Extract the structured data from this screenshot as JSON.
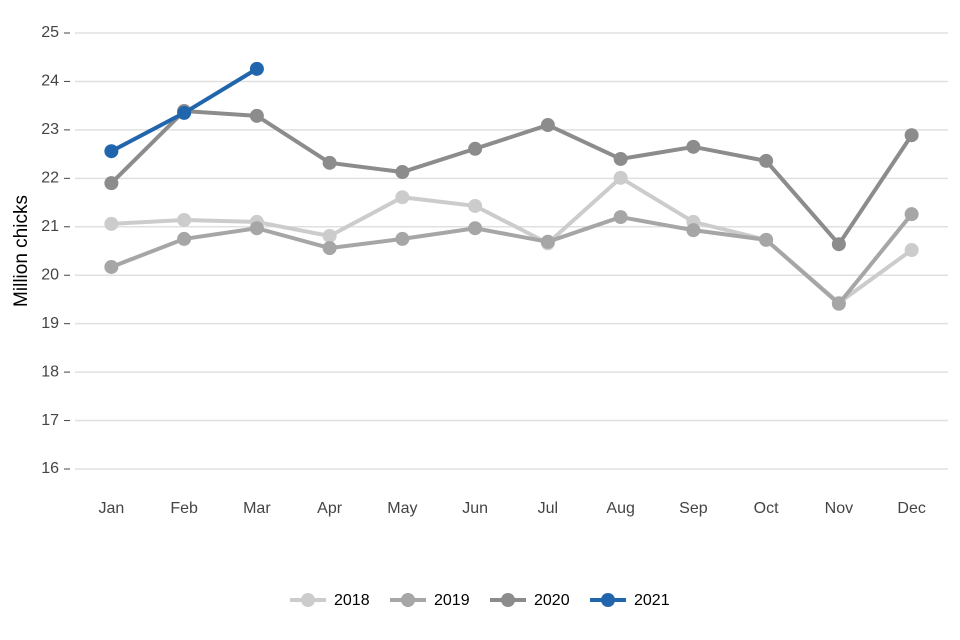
{
  "chart_data": {
    "type": "line",
    "y_label": "Million chicks",
    "categories": [
      "Jan",
      "Feb",
      "Mar",
      "Apr",
      "May",
      "Jun",
      "Jul",
      "Aug",
      "Sep",
      "Oct",
      "Nov",
      "Dec"
    ],
    "series": [
      {
        "name": "2018",
        "color": "#cccccc",
        "values": [
          21.06,
          21.14,
          21.1,
          20.81,
          21.61,
          21.43,
          20.66,
          22.01,
          21.1,
          20.73,
          19.43,
          20.52
        ]
      },
      {
        "name": "2019",
        "color": "#a6a6a6",
        "values": [
          20.17,
          20.75,
          20.97,
          20.56,
          20.75,
          20.97,
          20.69,
          21.2,
          20.93,
          20.73,
          19.41,
          21.26
        ]
      },
      {
        "name": "2020",
        "color": "#8c8c8c",
        "values": [
          21.9,
          23.39,
          23.29,
          22.32,
          22.13,
          22.61,
          23.1,
          22.4,
          22.65,
          22.36,
          20.64,
          22.89
        ]
      },
      {
        "name": "2021",
        "color": "#2166ac",
        "values": [
          22.56,
          23.35,
          24.26,
          null,
          null,
          null,
          null,
          null,
          null,
          null,
          null,
          null
        ]
      }
    ],
    "ylim": [
      16,
      25
    ],
    "yticks": [
      16,
      17,
      18,
      19,
      20,
      21,
      22,
      23,
      24,
      25
    ],
    "grid": true,
    "legend": "bottom"
  }
}
